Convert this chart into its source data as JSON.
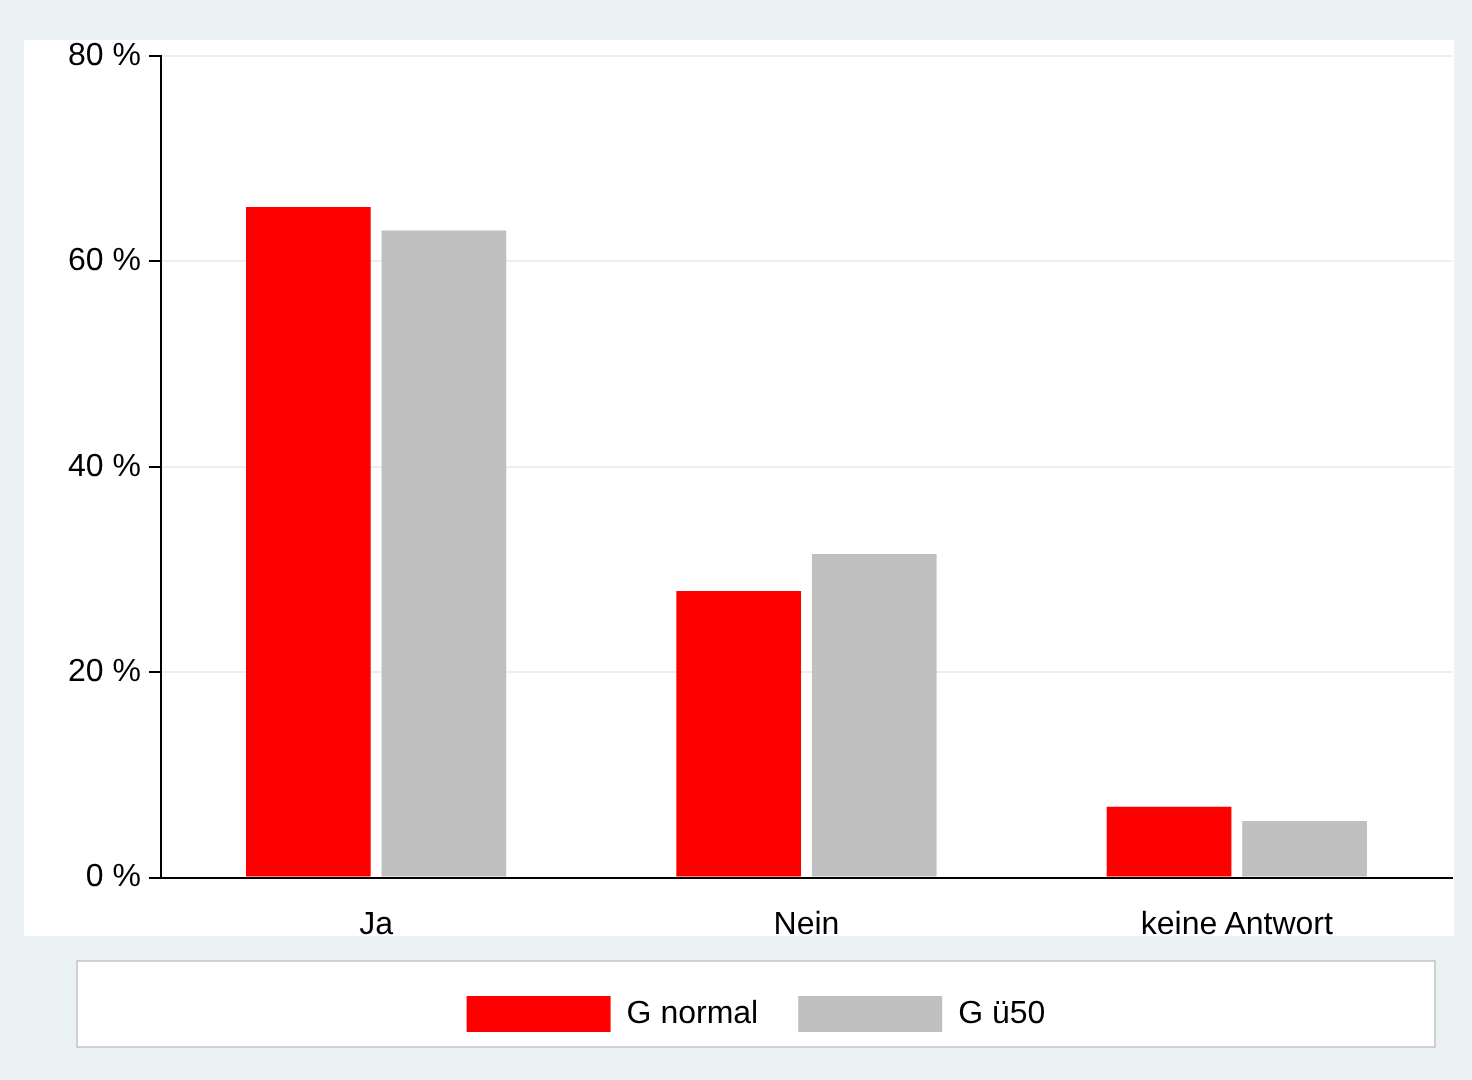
{
  "chart_data": {
    "type": "bar",
    "categories": [
      "Ja",
      "Nein",
      "keine Antwort"
    ],
    "series": [
      {
        "name": "G normal",
        "color": "#ff0000",
        "values": [
          65.3,
          27.9,
          6.9
        ]
      },
      {
        "name": "G ü50",
        "color": "#c0c0c0",
        "values": [
          63.0,
          31.5,
          5.5
        ]
      }
    ],
    "ylim": [
      0,
      80
    ],
    "yticks": [
      {
        "value": 0,
        "label": "0 %"
      },
      {
        "value": 20,
        "label": "20 %"
      },
      {
        "value": 40,
        "label": "40 %"
      },
      {
        "value": 60,
        "label": "60 %"
      },
      {
        "value": 80,
        "label": "80 %"
      }
    ],
    "grid": "y",
    "legend": "bottom"
  }
}
